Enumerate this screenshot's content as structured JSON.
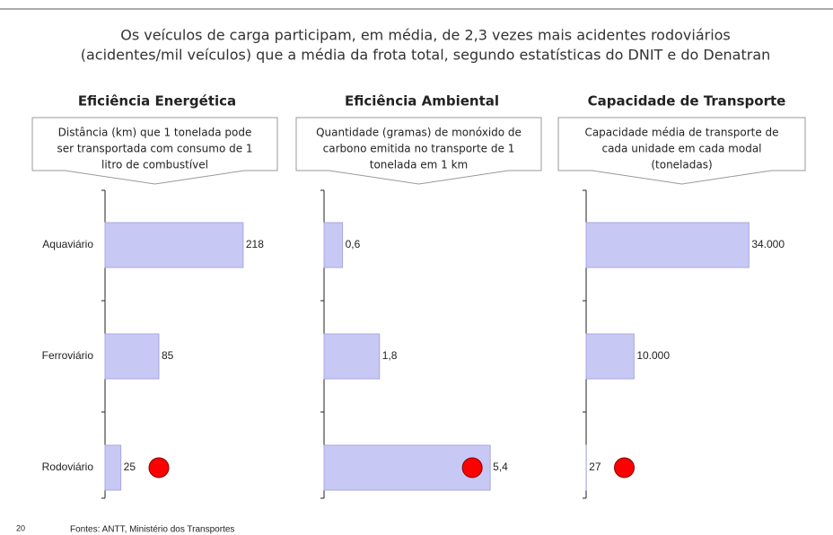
{
  "header": {
    "title_lines": [
      "Os veículos de carga participam, em média, de 2,3 vezes mais acidentes rodoviários",
      "(acidentes/mil veículos) que a média da frota total, segundo estatísticas do DNIT e do Denatran"
    ]
  },
  "chart_data": [
    {
      "type": "bar",
      "orientation": "horizontal",
      "title": "Eficiência Energética",
      "subtitle_lines": [
        "Distância (km) que 1 tonelada pode",
        "ser transportada com consumo de 1",
        "litro de combustível"
      ],
      "categories": [
        "Aquaviário",
        "Ferroviário",
        "Rodoviário"
      ],
      "values": [
        218,
        85,
        25
      ],
      "xlim": [
        0,
        340
      ],
      "color": "#c8c8f4",
      "highlight": "Rodoviário",
      "highlight_color": "#ff0000"
    },
    {
      "type": "bar",
      "orientation": "horizontal",
      "title": "Eficiência Ambiental",
      "subtitle_lines": [
        "Quantidade (gramas) de monóxido de",
        "carbono emitida no transporte de 1",
        "tonelada em 1 km"
      ],
      "values": [
        0.6,
        1.8,
        5.4
      ],
      "value_labels": [
        "0,6",
        "1,8",
        "5,4"
      ],
      "xlim": [
        0,
        7
      ],
      "color": "#c8c8f4",
      "highlight_index_label": "5,4",
      "highlight_color": "#ff0000"
    },
    {
      "type": "bar",
      "orientation": "horizontal",
      "title": "Capacidade de Transporte",
      "subtitle_lines": [
        "Capacidade média de transporte de",
        "cada unidade em cada modal",
        "(toneladas)"
      ],
      "values": [
        34000,
        10000,
        27
      ],
      "value_labels": [
        "34.000",
        "10.000",
        "27"
      ],
      "xlim": [
        0,
        45000
      ],
      "color": "#c8c8f4",
      "highlight_index_label": "27",
      "highlight_color": "#ff0000"
    }
  ],
  "footer": {
    "page": "20",
    "source": "Fontes: ANTT, Ministério dos Transportes"
  }
}
